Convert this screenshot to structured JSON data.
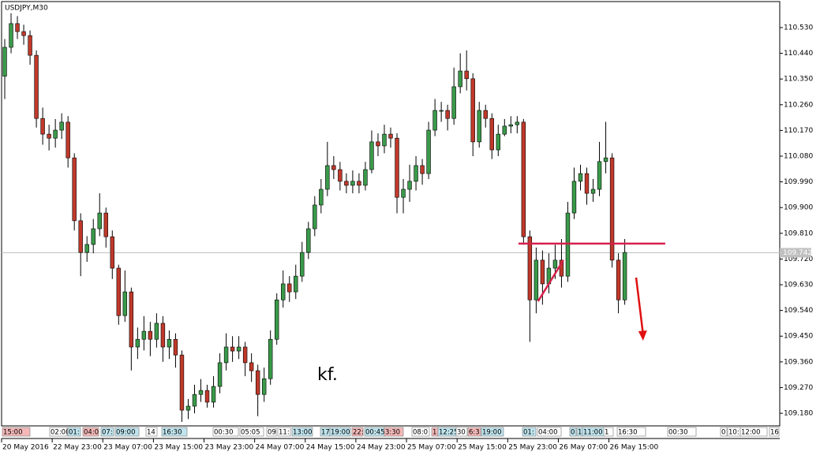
{
  "chart_data": {
    "type": "candlestick",
    "title": "USDJPY,M30",
    "note": "kf.",
    "bull_color": "#3a9a4a",
    "bear_color": "#c0392b",
    "open": [
      110.36,
      110.461,
      110.544,
      110.516,
      110.502,
      110.433,
      110.212,
      110.157,
      110.143,
      110.171,
      110.199,
      110.074,
      109.854,
      109.743,
      109.771,
      109.826,
      109.881,
      109.798,
      109.688,
      109.522,
      109.605,
      109.412,
      109.439,
      109.467,
      109.439,
      109.495,
      109.412,
      109.439,
      109.384,
      109.191,
      109.205,
      109.246,
      109.26,
      109.219,
      109.274,
      109.357,
      109.412,
      109.398,
      109.412,
      109.357,
      109.329,
      109.246,
      109.301,
      109.439,
      109.577,
      109.633,
      109.605,
      109.66,
      109.743,
      109.826,
      109.909,
      109.964,
      110.047,
      110.033,
      109.992,
      109.978,
      109.992,
      109.978,
      110.033,
      110.13,
      110.116,
      110.157,
      110.143,
      109.936,
      109.964,
      109.992,
      110.047,
      110.019,
      110.171,
      110.24,
      110.24,
      110.212,
      110.323,
      110.378,
      110.351,
      110.13,
      110.24,
      110.212,
      110.102,
      110.157,
      110.185,
      110.19,
      110.199,
      109.798,
      109.577,
      109.716,
      109.633,
      109.688,
      109.716,
      109.66,
      109.881,
      109.992,
      110.019,
      109.95,
      109.964,
      110.061,
      110.074,
      109.716,
      109.577
    ],
    "high": [
      110.49,
      110.58,
      110.57,
      110.54,
      110.52,
      110.45,
      110.25,
      110.19,
      110.21,
      110.23,
      110.22,
      110.09,
      109.88,
      109.8,
      109.86,
      109.95,
      109.9,
      109.82,
      109.7,
      109.68,
      109.62,
      109.48,
      109.52,
      109.5,
      109.53,
      109.52,
      109.47,
      109.46,
      109.4,
      109.23,
      109.28,
      109.3,
      109.28,
      109.31,
      109.39,
      109.46,
      109.45,
      109.45,
      109.43,
      109.39,
      109.35,
      109.34,
      109.47,
      109.6,
      109.68,
      109.66,
      109.7,
      109.78,
      109.85,
      109.94,
      110.0,
      110.13,
      110.08,
      110.06,
      110.02,
      110.03,
      110.02,
      110.06,
      110.17,
      110.16,
      110.19,
      110.18,
      110.16,
      110.0,
      110.05,
      110.08,
      110.07,
      110.2,
      110.28,
      110.27,
      110.26,
      110.39,
      110.44,
      110.45,
      110.37,
      110.27,
      110.26,
      110.23,
      110.19,
      110.21,
      110.22,
      110.22,
      110.21,
      109.82,
      109.76,
      109.75,
      109.74,
      109.77,
      109.79,
      109.92,
      110.04,
      110.05,
      110.04,
      110.0,
      110.13,
      110.2,
      110.09,
      109.74,
      109.79
    ],
    "low": [
      110.28,
      110.44,
      110.49,
      110.47,
      110.4,
      110.18,
      110.12,
      110.1,
      110.11,
      110.14,
      110.04,
      109.82,
      109.66,
      109.71,
      109.74,
      109.8,
      109.76,
      109.65,
      109.49,
      109.5,
      109.33,
      109.37,
      109.4,
      109.38,
      109.41,
      109.36,
      109.37,
      109.34,
      109.15,
      109.16,
      109.18,
      109.22,
      109.2,
      109.2,
      109.25,
      109.33,
      109.36,
      109.37,
      109.31,
      109.29,
      109.17,
      109.22,
      109.28,
      109.42,
      109.55,
      109.57,
      109.58,
      109.64,
      109.72,
      109.8,
      109.88,
      109.94,
      110.0,
      109.96,
      109.95,
      109.95,
      109.95,
      109.96,
      110.02,
      110.08,
      110.09,
      110.11,
      109.88,
      109.88,
      109.92,
      109.96,
      109.98,
      110.0,
      110.15,
      110.2,
      110.17,
      110.19,
      110.3,
      110.31,
      110.08,
      110.11,
      110.18,
      110.07,
      110.08,
      110.15,
      110.16,
      110.16,
      109.77,
      109.43,
      109.53,
      109.56,
      109.6,
      109.65,
      109.62,
      109.64,
      109.86,
      109.96,
      109.91,
      109.92,
      109.94,
      110.02,
      109.69,
      109.53,
      109.56
    ],
    "close": [
      110.461,
      110.544,
      110.516,
      110.502,
      110.433,
      110.212,
      110.157,
      110.143,
      110.171,
      110.199,
      110.074,
      109.854,
      109.743,
      109.771,
      109.826,
      109.881,
      109.798,
      109.688,
      109.522,
      109.605,
      109.412,
      109.439,
      109.467,
      109.439,
      109.495,
      109.412,
      109.439,
      109.384,
      109.191,
      109.205,
      109.246,
      109.26,
      109.219,
      109.274,
      109.357,
      109.412,
      109.398,
      109.412,
      109.357,
      109.329,
      109.246,
      109.301,
      109.439,
      109.577,
      109.633,
      109.605,
      109.66,
      109.743,
      109.826,
      109.909,
      109.964,
      110.047,
      110.033,
      109.992,
      109.978,
      109.992,
      109.978,
      110.033,
      110.13,
      110.116,
      110.157,
      110.143,
      109.936,
      109.964,
      109.992,
      110.047,
      110.019,
      110.171,
      110.24,
      110.24,
      110.212,
      110.323,
      110.378,
      110.351,
      110.13,
      110.24,
      110.212,
      110.102,
      110.157,
      110.185,
      110.19,
      110.199,
      109.798,
      109.577,
      109.716,
      109.633,
      109.688,
      109.716,
      109.66,
      109.881,
      109.992,
      110.019,
      109.95,
      109.964,
      110.061,
      110.074,
      109.716,
      109.577,
      109.743
    ],
    "xlim": [
      -0.5,
      122.5
    ],
    "ylim": [
      109.136,
      110.621
    ],
    "xticks": [
      {
        "value": -0.5,
        "label": "20 May 2016"
      },
      {
        "value": 7.5,
        "label": "22 May 23:00"
      },
      {
        "value": 15.5,
        "label": "23 May 07:00"
      },
      {
        "value": 23.5,
        "label": "23 May 15:00"
      },
      {
        "value": 31.5,
        "label": "23 May 23:00"
      },
      {
        "value": 39.5,
        "label": "24 May 07:00"
      },
      {
        "value": 47.5,
        "label": "24 May 15:00"
      },
      {
        "value": 55.5,
        "label": "24 May 23:00"
      },
      {
        "value": 63.5,
        "label": "25 May 07:00"
      },
      {
        "value": 71.5,
        "label": "25 May 15:00"
      },
      {
        "value": 79.5,
        "label": "25 May 23:00"
      },
      {
        "value": 87.5,
        "label": "26 May 07:00"
      },
      {
        "value": 95.5,
        "label": "26 May 15:00"
      }
    ],
    "yticks": [
      {
        "value": 110.53,
        "label": "110.530"
      },
      {
        "value": 110.44,
        "label": "110.440"
      },
      {
        "value": 110.35,
        "label": "110.350"
      },
      {
        "value": 110.26,
        "label": "110.260"
      },
      {
        "value": 110.17,
        "label": "110.170"
      },
      {
        "value": 110.08,
        "label": "110.080"
      },
      {
        "value": 109.99,
        "label": "109.990"
      },
      {
        "value": 109.9,
        "label": "109.900"
      },
      {
        "value": 109.81,
        "label": "109.810"
      },
      {
        "value": 109.72,
        "label": "109.720"
      },
      {
        "value": 109.63,
        "label": "109.630"
      },
      {
        "value": 109.54,
        "label": "109.540"
      },
      {
        "value": 109.45,
        "label": "109.450"
      },
      {
        "value": 109.36,
        "label": "109.360"
      },
      {
        "value": 109.27,
        "label": "109.270"
      },
      {
        "value": 109.18,
        "label": "109.180"
      }
    ],
    "current_price": {
      "value": 109.742,
      "label": "109.742"
    },
    "hline": {
      "value": 109.774,
      "x": [
        81.2,
        104.4
      ],
      "color": "#d6204b"
    },
    "trendline": {
      "x": [
        84.3,
        88.3
      ],
      "y": [
        109.572,
        109.716
      ],
      "color": "#d6204b"
    },
    "arrow": {
      "x": [
        99.8,
        100.9
      ],
      "y": [
        109.655,
        109.434
      ],
      "color": "#e01010"
    },
    "events": [
      {
        "label": "15:00",
        "kind": "red"
      },
      {
        "label": "02:00",
        "kind": "plain"
      },
      {
        "label": "01:",
        "kind": "blue"
      },
      {
        "label": "04:0",
        "kind": "red"
      },
      {
        "label": "07:",
        "kind": "blue"
      },
      {
        "label": "09:00",
        "kind": "blue"
      },
      {
        "label": "14",
        "kind": "plain"
      },
      {
        "label": "16:30",
        "kind": "blue"
      },
      {
        "label": "00:30",
        "kind": "plain"
      },
      {
        "label": "05:05",
        "kind": "plain"
      },
      {
        "label": "09",
        "kind": "plain"
      },
      {
        "label": "11:",
        "kind": "plain"
      },
      {
        "label": "13:00",
        "kind": "blue"
      },
      {
        "label": "17",
        "kind": "blue"
      },
      {
        "label": "19:00",
        "kind": "blue"
      },
      {
        "label": "22:",
        "kind": "red"
      },
      {
        "label": "00:45",
        "kind": "blue"
      },
      {
        "label": "3:30",
        "kind": "red"
      },
      {
        "label": "08:0",
        "kind": "plain"
      },
      {
        "label": "1",
        "kind": "red"
      },
      {
        "label": "12:25",
        "kind": "blue"
      },
      {
        "label": "30",
        "kind": "plain"
      },
      {
        "label": "6:3",
        "kind": "red"
      },
      {
        "label": "19:00",
        "kind": "blue"
      },
      {
        "label": "01:",
        "kind": "blue"
      },
      {
        "label": "04:00",
        "kind": "plain"
      },
      {
        "label": "0",
        "kind": "blue"
      },
      {
        "label": "1",
        "kind": "blue"
      },
      {
        "label": "11:00",
        "kind": "blue"
      },
      {
        "label": "1",
        "kind": "plain"
      },
      {
        "label": "16:30",
        "kind": "plain"
      },
      {
        "label": "00:30",
        "kind": "plain"
      },
      {
        "label": "0",
        "kind": "plain"
      },
      {
        "label": "10:",
        "kind": "plain"
      },
      {
        "label": "12:00",
        "kind": "plain"
      },
      {
        "label": "16",
        "kind": "plain"
      }
    ]
  }
}
